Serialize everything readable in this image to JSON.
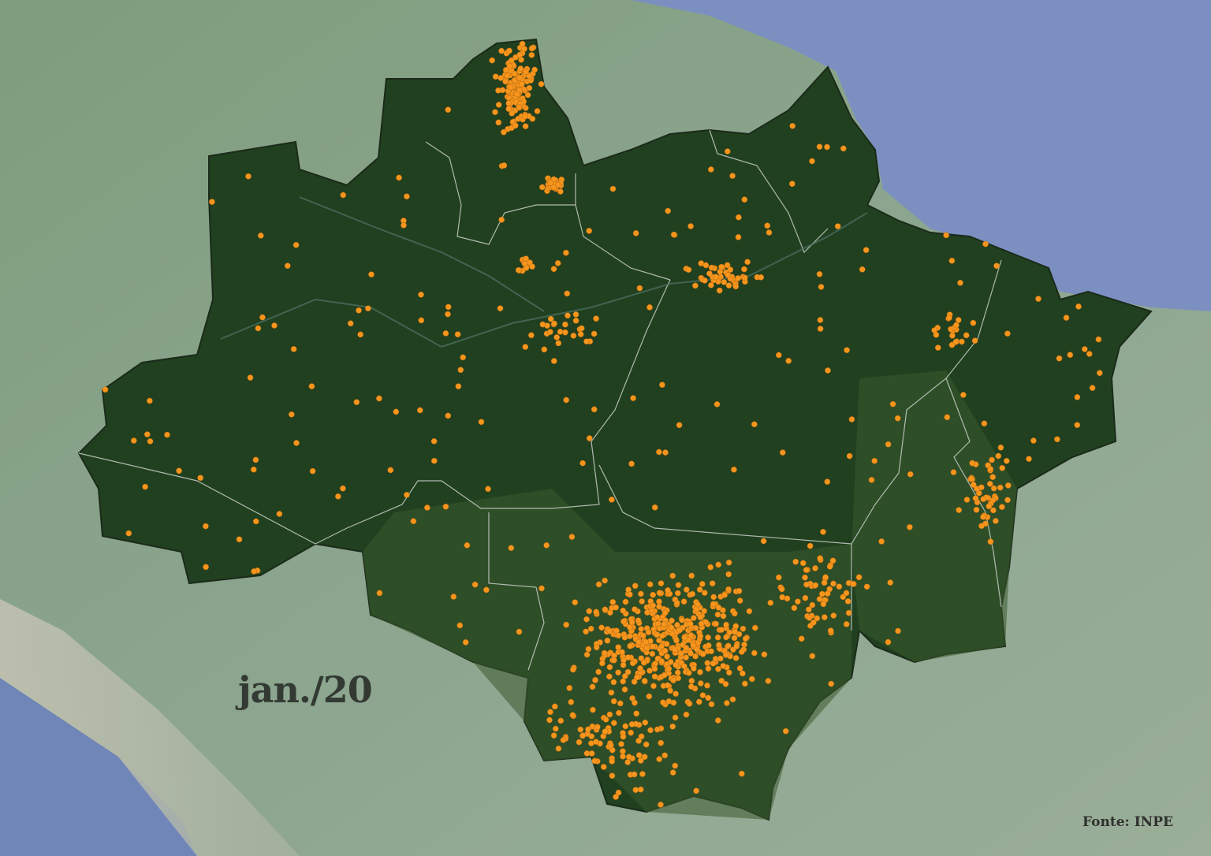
{
  "map": {
    "date_label": "jan./20",
    "source_label": "Fonte: INPE",
    "colors": {
      "fire_dot": "#f7951d",
      "region_fill": "#21401f",
      "surrounding_land": "#86a08a",
      "ocean": "#7d93c2",
      "state_border": "#c9cfc9"
    },
    "markers": "fire-hotspot"
  }
}
